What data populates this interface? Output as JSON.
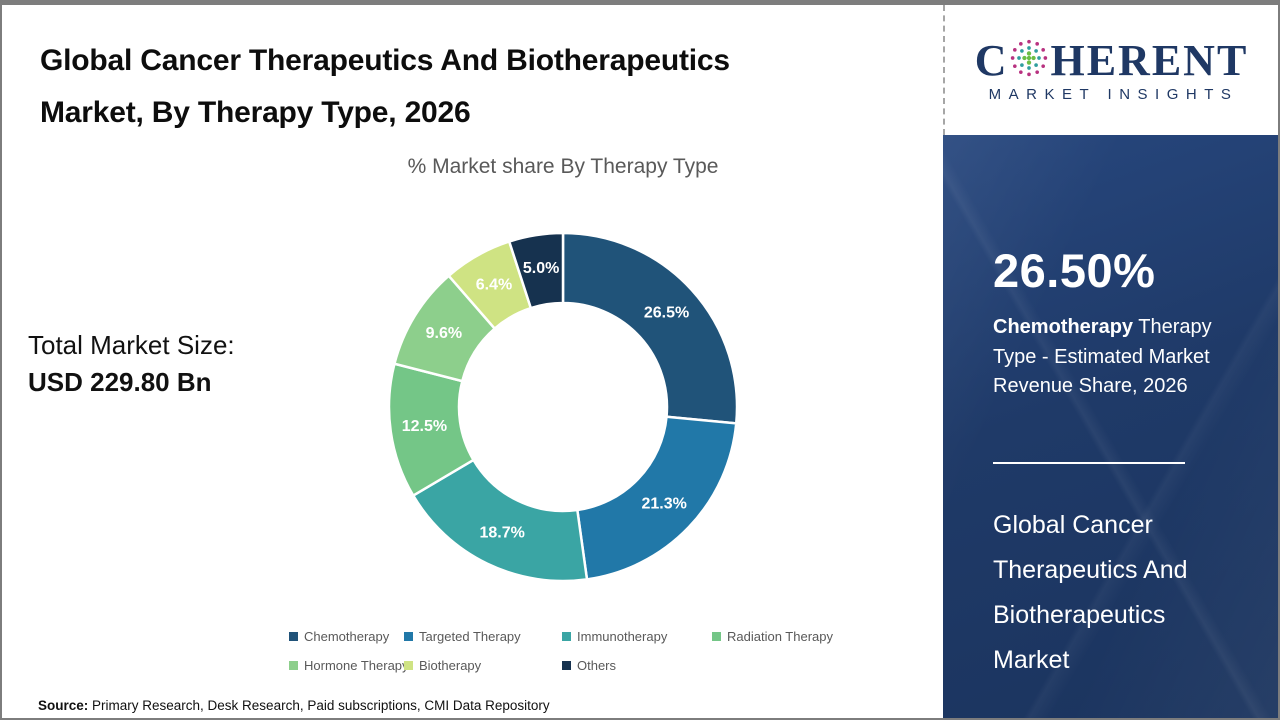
{
  "header": {
    "title_line1": "Global Cancer Therapeutics And Biotherapeutics",
    "title_line2": "Market, By Therapy Type, 2026"
  },
  "logo": {
    "brand_first_letter": "C",
    "brand_rest": "HERENT",
    "tagline": "MARKET INSIGHTS",
    "icon": "globe-dots-icon",
    "brand_color": "#1f3864"
  },
  "chart_data": {
    "type": "pie",
    "subtype": "donut",
    "title": "% Market share By Therapy Type",
    "categories": [
      "Chemotherapy",
      "Targeted Therapy",
      "Immunotherapy",
      "Radiation Therapy",
      "Hormone Therapy",
      "Biotherapy",
      "Others"
    ],
    "values": [
      26.5,
      21.3,
      18.7,
      12.5,
      9.6,
      6.4,
      5.0
    ],
    "labels": [
      "26.5%",
      "21.3%",
      "18.7%",
      "12.5%",
      "9.6%",
      "6.4%",
      "5.0%"
    ],
    "colors": [
      "#205379",
      "#2178A8",
      "#3AA5A4",
      "#74C687",
      "#8DCF8C",
      "#CFE383",
      "#16324F"
    ],
    "start_angle": 0,
    "direction": "clockwise",
    "donut_hole_ratio": 0.6,
    "label_color": "#ffffff",
    "legend_position": "bottom",
    "legend_text_color": "#595959"
  },
  "market_size": {
    "label": "Total Market Size:",
    "value": "USD 229.80 Bn"
  },
  "sidebar": {
    "stat_value": "26.50%",
    "stat_desc_bold": "Chemotherapy",
    "stat_desc_rest": " Therapy Type - Estimated Market Revenue Share, 2026",
    "market_name": "Global Cancer Therapeutics And Biotherapeutics Market",
    "background_color": "#1f3a68"
  },
  "source": {
    "label": "Source:",
    "text": " Primary Research, Desk Research, Paid subscriptions, CMI Data Repository"
  }
}
